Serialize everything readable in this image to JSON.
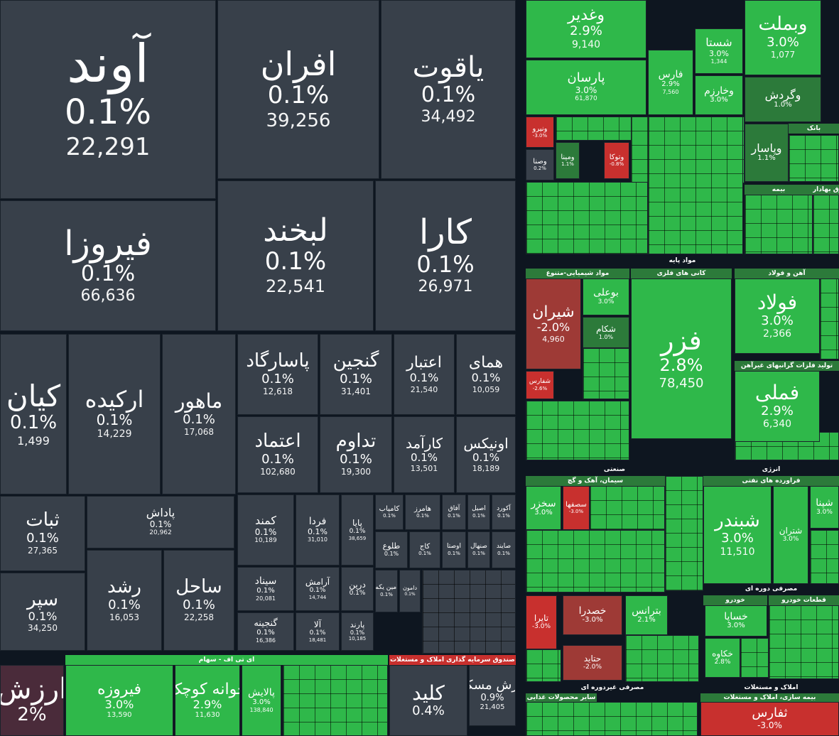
{
  "colors": {
    "gray": "#38404a",
    "green": "#2fb84a",
    "green_dark": "#2c7a3a",
    "red": "#c8302e",
    "red_dark": "#9e3a36",
    "purple": "#4a2b3a",
    "background": "#0e1620"
  },
  "chart_data": {
    "type": "treemap",
    "sections": [
      "مواد پایه",
      "صنعتی",
      "انرژی",
      "مصرفی دوره ای",
      "مصرفی غیردوره ای",
      "املاک و مستغلات",
      "ای تی اف - سهام",
      "صندوق سرمایه گذاری املاک و مستغلات",
      "مواد شیمیایی-متنوع",
      "کانی های فلزی",
      "آهن و فولاد",
      "تولید فلزات گرانبهای غیرآهن",
      "سیمان، آهک و گچ",
      "فراورده های نفتی",
      "خودرو",
      "قطعات خودرو",
      "بیمه",
      "بیمه سازی، املاک و مستغلات",
      "سایر محصولات غذایی",
      "بانک",
      "ورق بهادار"
    ],
    "tiles": [
      {
        "name": "آوند",
        "change": "0.1%",
        "value": "22,291",
        "color": "gray"
      },
      {
        "name": "افران",
        "change": "0.1%",
        "value": "39,256",
        "color": "gray"
      },
      {
        "name": "یاقوت",
        "change": "0.1%",
        "value": "34,492",
        "color": "gray"
      },
      {
        "name": "فیروزا",
        "change": "0.1%",
        "value": "66,636",
        "color": "gray"
      },
      {
        "name": "لبخند",
        "change": "0.1%",
        "value": "22,541",
        "color": "gray"
      },
      {
        "name": "کارا",
        "change": "0.1%",
        "value": "26,971",
        "color": "gray"
      },
      {
        "name": "کیان",
        "change": "0.1%",
        "value": "1,499",
        "color": "gray"
      },
      {
        "name": "ارکیده",
        "change": "0.1%",
        "value": "14,229",
        "color": "gray"
      },
      {
        "name": "ماهور",
        "change": "0.1%",
        "value": "17,068",
        "color": "gray"
      },
      {
        "name": "پاسارگاد",
        "change": "0.1%",
        "value": "12,618",
        "color": "gray"
      },
      {
        "name": "گنجین",
        "change": "0.1%",
        "value": "31,401",
        "color": "gray"
      },
      {
        "name": "اعتبار",
        "change": "0.1%",
        "value": "21,540",
        "color": "gray"
      },
      {
        "name": "همای",
        "change": "0.1%",
        "value": "10,059",
        "color": "gray"
      },
      {
        "name": "اعتماد",
        "change": "0.1%",
        "value": "102,680",
        "color": "gray"
      },
      {
        "name": "تداوم",
        "change": "0.1%",
        "value": "19,300",
        "color": "gray"
      },
      {
        "name": "کارآمد",
        "change": "0.1%",
        "value": "13,501",
        "color": "gray"
      },
      {
        "name": "اونیکس",
        "change": "0.1%",
        "value": "18,189",
        "color": "gray"
      },
      {
        "name": "ثبات",
        "change": "0.1%",
        "value": "27,365",
        "color": "gray"
      },
      {
        "name": "پاداش",
        "change": "0.1%",
        "value": "20,962",
        "color": "gray"
      },
      {
        "name": "کمند",
        "change": "0.1%",
        "value": "10,189",
        "color": "gray"
      },
      {
        "name": "فردا",
        "change": "0.1%",
        "value": "31,010",
        "color": "gray"
      },
      {
        "name": "پایا",
        "change": "0.1%",
        "value": "38,659",
        "color": "gray"
      },
      {
        "name": "کامیاب",
        "change": "0.1%",
        "value": "",
        "color": "gray"
      },
      {
        "name": "هامرز",
        "change": "0.1%",
        "value": "",
        "color": "gray"
      },
      {
        "name": "آفاق",
        "change": "0.1%",
        "value": "",
        "color": "gray"
      },
      {
        "name": "اصیل",
        "change": "0.1%",
        "value": "",
        "color": "gray"
      },
      {
        "name": "آکورد",
        "change": "0.1%",
        "value": "",
        "color": "gray"
      },
      {
        "name": "طلوع",
        "change": "0.1%",
        "value": "",
        "color": "gray"
      },
      {
        "name": "کاج",
        "change": "0.1%",
        "value": "",
        "color": "gray"
      },
      {
        "name": "اوصتا",
        "change": "0.1%",
        "value": "",
        "color": "gray"
      },
      {
        "name": "صنهال",
        "change": "0.1%",
        "value": "",
        "color": "gray"
      },
      {
        "name": "صایند",
        "change": "0.1%",
        "value": "",
        "color": "gray"
      },
      {
        "name": "سپر",
        "change": "0.1%",
        "value": "34,250",
        "color": "gray"
      },
      {
        "name": "رشد",
        "change": "0.1%",
        "value": "16,053",
        "color": "gray"
      },
      {
        "name": "ساحل",
        "change": "0.1%",
        "value": "22,258",
        "color": "gray"
      },
      {
        "name": "سیناد",
        "change": "0.1%",
        "value": "20,081",
        "color": "gray"
      },
      {
        "name": "آرامش",
        "change": "0.1%",
        "value": "14,744",
        "color": "gray"
      },
      {
        "name": "درین",
        "change": "0.1%",
        "value": "",
        "color": "gray"
      },
      {
        "name": "امین یکم",
        "change": "0.1%",
        "value": "",
        "color": "gray"
      },
      {
        "name": "دامون",
        "change": "0.1%",
        "value": "",
        "color": "gray"
      },
      {
        "name": "گنجینه",
        "change": "0.1%",
        "value": "16,386",
        "color": "gray"
      },
      {
        "name": "آلا",
        "change": "0.1%",
        "value": "18,481",
        "color": "gray"
      },
      {
        "name": "پارند",
        "change": "0.1%",
        "value": "10,185",
        "color": "gray"
      },
      {
        "name": "ارزش",
        "change": "2%",
        "value": "",
        "color": "purple"
      },
      {
        "name": "فیروزه",
        "change": "3.0%",
        "value": "13,590",
        "color": "green"
      },
      {
        "name": "جوانه کوچک",
        "change": "2.9%",
        "value": "11,630",
        "color": "green"
      },
      {
        "name": "پالایش",
        "change": "3.0%",
        "value": "138,840",
        "color": "green"
      },
      {
        "name": "کلید",
        "change": "0.4%",
        "value": "",
        "color": "gray"
      },
      {
        "name": "ارزش مسکن",
        "change": "0.9%",
        "value": "21,405",
        "color": "gray"
      },
      {
        "name": "وغدیر",
        "change": "2.9%",
        "value": "9,140",
        "color": "green"
      },
      {
        "name": "وبملت",
        "change": "3.0%",
        "value": "1,077",
        "color": "green"
      },
      {
        "name": "پارسان",
        "change": "3.0%",
        "value": "61,870",
        "color": "green"
      },
      {
        "name": "شستا",
        "change": "3.0%",
        "value": "1,344",
        "color": "green"
      },
      {
        "name": "فارس",
        "change": "2.9%",
        "value": "7,560",
        "color": "green"
      },
      {
        "name": "وخارزم",
        "change": "3.0%",
        "value": "",
        "color": "green"
      },
      {
        "name": "وگردش",
        "change": "1.0%",
        "value": "",
        "color": "green_dark"
      },
      {
        "name": "وپاسار",
        "change": "1.1%",
        "value": "",
        "color": "green_dark"
      },
      {
        "name": "ونیرو",
        "change": "-3.0%",
        "value": "",
        "color": "red"
      },
      {
        "name": "وصنا",
        "change": "0.2%",
        "value": "",
        "color": "gray"
      },
      {
        "name": "ومینا",
        "change": "1.1%",
        "value": "",
        "color": "green_dark"
      },
      {
        "name": "وتوکا",
        "change": "-0.8%",
        "value": "",
        "color": "red"
      },
      {
        "name": "شیران",
        "change": "-2.0%",
        "value": "4,960",
        "color": "red_dark"
      },
      {
        "name": "بوعلی",
        "change": "3.0%",
        "value": "",
        "color": "green"
      },
      {
        "name": "شکام",
        "change": "1.0%",
        "value": "",
        "color": "green_dark"
      },
      {
        "name": "فزر",
        "change": "2.8%",
        "value": "78,450",
        "color": "green"
      },
      {
        "name": "فولاد",
        "change": "3.0%",
        "value": "2,366",
        "color": "green"
      },
      {
        "name": "فملی",
        "change": "2.9%",
        "value": "6,340",
        "color": "green"
      },
      {
        "name": "شفارس",
        "change": "-2.6%",
        "value": "",
        "color": "red"
      },
      {
        "name": "سخزر",
        "change": "3.0%",
        "value": "",
        "color": "green"
      },
      {
        "name": "سصفها",
        "change": "-3.0%",
        "value": "",
        "color": "red"
      },
      {
        "name": "شبندر",
        "change": "3.0%",
        "value": "11,510",
        "color": "green"
      },
      {
        "name": "شتران",
        "change": "3.0%",
        "value": "",
        "color": "green"
      },
      {
        "name": "شپنا",
        "change": "3.0%",
        "value": "",
        "color": "green"
      },
      {
        "name": "تایرا",
        "change": "-3.0%",
        "value": "",
        "color": "red"
      },
      {
        "name": "خصدرا",
        "change": "-3.0%",
        "value": "",
        "color": "red_dark"
      },
      {
        "name": "بترانس",
        "change": "2.1%",
        "value": "",
        "color": "green"
      },
      {
        "name": "خساپا",
        "change": "3.0%",
        "value": "",
        "color": "green"
      },
      {
        "name": "خکاوه",
        "change": "2.8%",
        "value": "",
        "color": "green"
      },
      {
        "name": "حتاید",
        "change": "-2.0%",
        "value": "",
        "color": "red_dark"
      },
      {
        "name": "ثفارس",
        "change": "-3.0%",
        "value": "",
        "color": "red"
      }
    ]
  }
}
